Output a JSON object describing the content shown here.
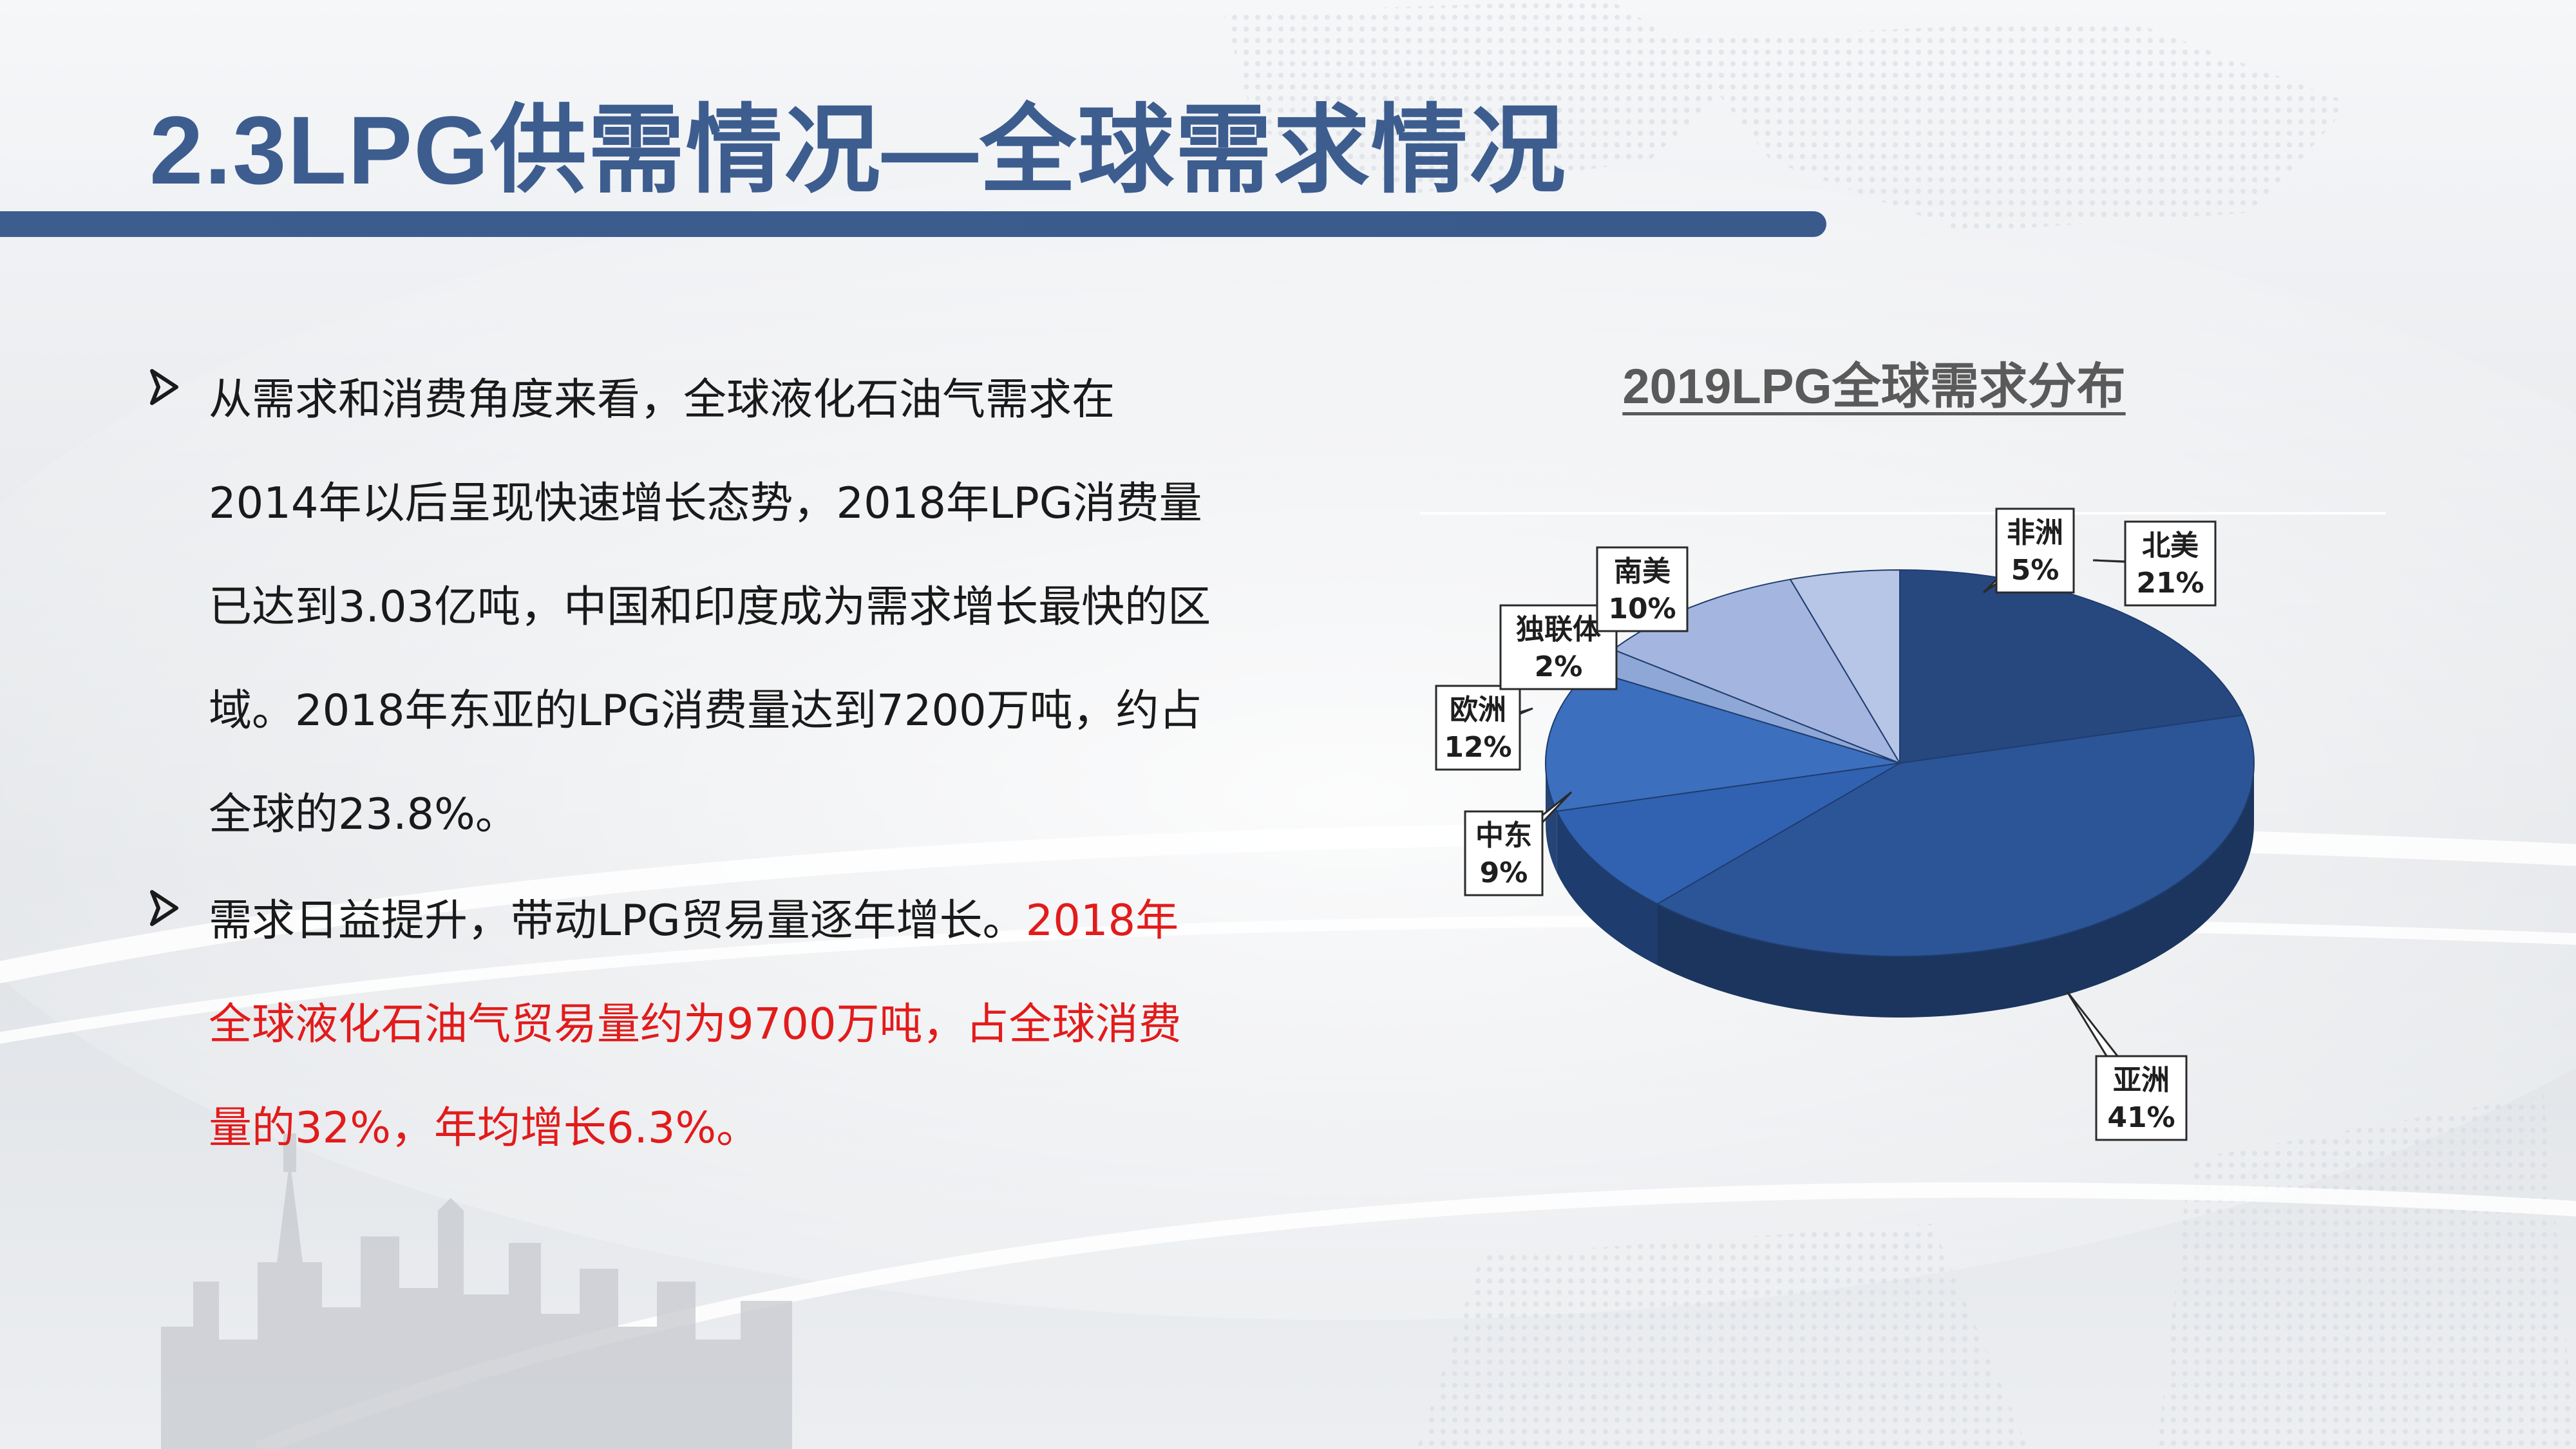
{
  "title": "2.3LPG供需情况—全球需求情况",
  "bullets": [
    {
      "text": "从需求和消费角度来看，全球液化石油气需求在2014年以后呈现快速增长态势，2018年LPG消费量已达到3.03亿吨，中国和印度成为需求增长最快的区域。2018年东亚的LPG消费量达到7200万吨，约占全球的23.8%。",
      "highlight": ""
    },
    {
      "text": "需求日益提升，带动LPG贸易量逐年增长。",
      "highlight": "2018年全球液化石油气贸易量约为9700万吨，占全球消费量的32%，年均增长6.3%。"
    }
  ],
  "colors": {
    "title": "#3d5d8f",
    "highlight": "#e21b1b",
    "slices": [
      "#27487f",
      "#2b5597",
      "#3162b1",
      "#3d6fbf",
      "#8fa7d6",
      "#a4b6e0",
      "#b7c5e6"
    ]
  },
  "chart_data": {
    "type": "pie",
    "title": "2019LPG全球需求分布",
    "slices": [
      {
        "label": "北美",
        "value": 21,
        "value_label": "21%"
      },
      {
        "label": "亚洲",
        "value": 41,
        "value_label": "41%"
      },
      {
        "label": "中东",
        "value": 9,
        "value_label": "9%"
      },
      {
        "label": "欧洲",
        "value": 12,
        "value_label": "12%"
      },
      {
        "label": "独联体",
        "value": 2,
        "value_label": "2%"
      },
      {
        "label": "南美",
        "value": 10,
        "value_label": "10%"
      },
      {
        "label": "非洲",
        "value": 5,
        "value_label": "5%"
      }
    ]
  }
}
